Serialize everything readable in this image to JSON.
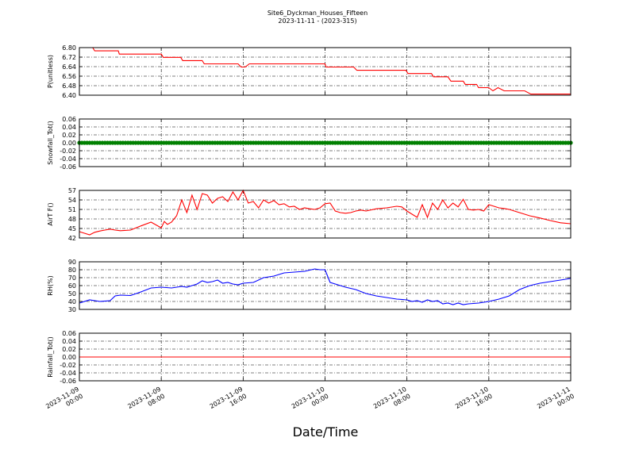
{
  "figure": {
    "title_line1": "Site6_Dyckman_Houses_Fifteen",
    "title_line2": "2023-11-11 - (2023-315)",
    "xlabel": "Date/Time",
    "x_ticks": [
      {
        "t": 0,
        "l1": "2023-11-09",
        "l2": "00:00"
      },
      {
        "t": 8,
        "l1": "2023-11-09",
        "l2": "08:00"
      },
      {
        "t": 16,
        "l1": "2023-11-09",
        "l2": "16:00"
      },
      {
        "t": 24,
        "l1": "2023-11-10",
        "l2": "00:00"
      },
      {
        "t": 32,
        "l1": "2023-11-10",
        "l2": "08:00"
      },
      {
        "t": 40,
        "l1": "2023-11-10",
        "l2": "16:00"
      },
      {
        "t": 48,
        "l1": "2023-11-11",
        "l2": "00:00"
      }
    ]
  },
  "chart_data": [
    {
      "type": "line",
      "ylabel": "P(unitless)",
      "color": "#ff0000",
      "xlim": [
        "2023-11-09 00:00",
        "2023-11-11 00:00"
      ],
      "ylim": [
        6.36,
        6.8
      ],
      "yticks": [
        "6.80",
        "6.72",
        "6.64",
        "6.56",
        "6.48",
        "6.40"
      ],
      "grid": true,
      "x": [
        0,
        1.3,
        1.5,
        3.8,
        3.9,
        8.0,
        8.2,
        9.9,
        10.1,
        12.0,
        12.2,
        15.5,
        15.8,
        16.2,
        16.6,
        24.0,
        24.1,
        26.8,
        27.1,
        31.9,
        32.1,
        34.4,
        34.6,
        36.0,
        36.3,
        37.5,
        37.7,
        38.8,
        39.0,
        40.0,
        40.4,
        40.9,
        41.5,
        43.5,
        44.1,
        48
      ],
      "y": [
        6.8,
        6.8,
        6.77,
        6.77,
        6.74,
        6.74,
        6.71,
        6.71,
        6.68,
        6.68,
        6.65,
        6.65,
        6.62,
        6.62,
        6.65,
        6.65,
        6.62,
        6.62,
        6.59,
        6.59,
        6.56,
        6.56,
        6.53,
        6.53,
        6.49,
        6.49,
        6.46,
        6.46,
        6.43,
        6.43,
        6.4,
        6.43,
        6.4,
        6.4,
        6.37,
        6.37
      ]
    },
    {
      "type": "scatter",
      "ylabel": "Snowfall_Tot()",
      "color": "#008000",
      "xlim": [
        "2023-11-09 00:00",
        "2023-11-11 00:00"
      ],
      "ylim": [
        -0.06,
        0.06
      ],
      "yticks": [
        "0.06",
        "0.04",
        "0.02",
        "0.00",
        "-0.02",
        "-0.04",
        "-0.06"
      ],
      "grid": true,
      "x": [
        0,
        48
      ],
      "y": [
        0.0,
        0.0
      ]
    },
    {
      "type": "line",
      "ylabel": "AirT F()",
      "color": "#ff0000",
      "xlim": [
        "2023-11-09 00:00",
        "2023-11-11 00:00"
      ],
      "ylim": [
        42,
        57
      ],
      "yticks": [
        "57",
        "54",
        "51",
        "48",
        "45",
        "42"
      ],
      "grid": true,
      "x": [
        0,
        0.5,
        1.0,
        1.5,
        2.0,
        2.5,
        3.0,
        3.5,
        4.0,
        5.0,
        6.0,
        7.0,
        8.0,
        8.3,
        8.6,
        9.0,
        9.5,
        10.0,
        10.5,
        11.0,
        11.5,
        12.0,
        12.5,
        13.0,
        13.5,
        14.0,
        14.5,
        15.0,
        15.5,
        16.0,
        16.5,
        17.0,
        17.5,
        18.0,
        18.5,
        19.0,
        19.5,
        20.0,
        20.5,
        21.0,
        21.5,
        22.0,
        22.5,
        23.0,
        23.5,
        24.0,
        24.5,
        25.0,
        25.5,
        26.0,
        26.5,
        27.0,
        27.5,
        28.0,
        29.0,
        30.0,
        31.0,
        31.5,
        32.0,
        32.5,
        33.0,
        33.5,
        34.0,
        34.5,
        35.0,
        35.5,
        36.0,
        36.5,
        37.0,
        37.5,
        38.0,
        38.5,
        39.0,
        39.5,
        40.0,
        40.5,
        41.0,
        41.5,
        42.0,
        43.0,
        44.0,
        45.0,
        46.0,
        47.0,
        48
      ],
      "y": [
        44.0,
        43.5,
        43.0,
        43.8,
        44.2,
        44.5,
        44.8,
        44.5,
        44.3,
        44.5,
        45.8,
        47.0,
        45.2,
        47.2,
        46.3,
        47.0,
        49.0,
        54.0,
        50.0,
        55.5,
        51.0,
        56.0,
        55.5,
        53.0,
        54.5,
        55.0,
        53.5,
        56.5,
        54.0,
        57.0,
        53.0,
        53.5,
        51.5,
        54.0,
        53.0,
        53.8,
        52.5,
        52.8,
        51.8,
        52.0,
        51.0,
        51.5,
        51.2,
        51.0,
        51.5,
        52.8,
        53.0,
        50.5,
        50.0,
        49.8,
        50.0,
        50.5,
        50.8,
        50.5,
        51.2,
        51.5,
        52.0,
        51.8,
        50.5,
        49.5,
        48.5,
        52.5,
        48.5,
        53.0,
        51.0,
        54.0,
        51.5,
        53.0,
        51.8,
        54.2,
        51.0,
        50.8,
        51.0,
        50.5,
        52.5,
        52.0,
        51.5,
        51.3,
        51.0,
        50.0,
        49.0,
        48.3,
        47.5,
        46.8,
        46.5
      ]
    },
    {
      "type": "line",
      "ylabel": "RH(%)",
      "color": "#0000ff",
      "xlim": [
        "2023-11-09 00:00",
        "2023-11-11 00:00"
      ],
      "ylim": [
        30,
        90
      ],
      "yticks": [
        "90",
        "80",
        "70",
        "60",
        "50",
        "40",
        "30"
      ],
      "grid": true,
      "x": [
        0,
        1.0,
        2.0,
        3.0,
        3.5,
        4.0,
        5.0,
        6.0,
        7.0,
        8.0,
        9.0,
        10.0,
        10.5,
        11.0,
        11.5,
        12.0,
        12.5,
        13.0,
        13.5,
        14.0,
        14.5,
        15.0,
        15.5,
        16.0,
        17.0,
        18.0,
        19.0,
        20.0,
        21.0,
        22.0,
        23.0,
        23.5,
        24.0,
        24.5,
        25.0,
        26.0,
        27.0,
        28.0,
        29.0,
        30.0,
        31.0,
        32.0,
        32.5,
        33.0,
        33.5,
        34.0,
        34.5,
        35.0,
        35.5,
        36.0,
        36.5,
        37.0,
        37.5,
        38.0,
        39.0,
        40.0,
        41.0,
        42.0,
        43.0,
        44.0,
        45.0,
        46.0,
        47.0,
        48
      ],
      "y": [
        38.0,
        42.0,
        40.0,
        41.0,
        47.0,
        48.0,
        47.5,
        52.0,
        57.0,
        58.0,
        57.0,
        59.0,
        58.0,
        60.0,
        62.0,
        66.0,
        64.0,
        65.0,
        67.0,
        63.0,
        64.0,
        62.0,
        61.0,
        63.0,
        64.0,
        70.0,
        72.0,
        76.0,
        77.0,
        78.0,
        81.0,
        80.0,
        80.0,
        64.0,
        62.0,
        58.0,
        55.0,
        50.0,
        47.0,
        45.0,
        43.0,
        42.0,
        40.0,
        41.0,
        39.0,
        42.0,
        40.0,
        41.0,
        37.0,
        38.0,
        36.0,
        38.0,
        36.0,
        37.0,
        38.0,
        40.0,
        43.0,
        47.0,
        55.0,
        60.0,
        63.0,
        65.0,
        67.0,
        69.0
      ]
    },
    {
      "type": "line",
      "ylabel": "Rainfall_Tot()",
      "color": "#ff0000",
      "xlim": [
        "2023-11-09 00:00",
        "2023-11-11 00:00"
      ],
      "ylim": [
        -0.06,
        0.06
      ],
      "yticks": [
        "0.06",
        "0.04",
        "0.02",
        "0.00",
        "-0.02",
        "-0.04",
        "-0.06"
      ],
      "grid": true,
      "x": [
        0,
        48
      ],
      "y": [
        0.0,
        0.0
      ]
    }
  ]
}
